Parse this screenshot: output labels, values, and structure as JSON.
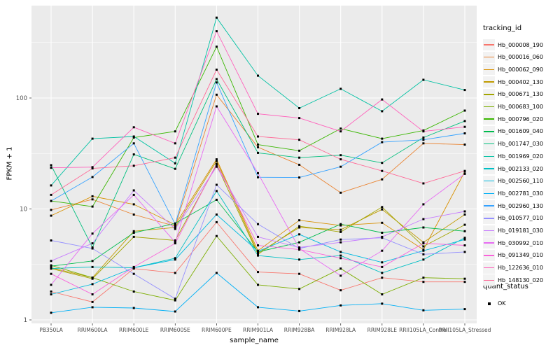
{
  "chart_data": {
    "type": "line",
    "title": "",
    "xlabel": "sample_name",
    "ylabel": "FPKM + 1",
    "y_scale": "log10",
    "y_ticks": [
      1,
      10,
      100
    ],
    "y_minor_ticks": [
      3.1623,
      31.623,
      316.23
    ],
    "ylim": [
      0.93,
      680
    ],
    "grid": "white major and minor gridlines on gray panel",
    "legend_position": "right",
    "legend_title": "tracking_id",
    "legend2_title": "quant_status",
    "quant_status_label": "OK",
    "x_categories": [
      "PB350LA",
      "RRIM600LA",
      "RRIM600LE",
      "RRIM600SE",
      "RRIM600PE",
      "RRIM901LA",
      "RRIM928BA",
      "RRIM928LA",
      "RRIM928LE",
      "RRII105LA_Control",
      "RRII105LA_Stressed"
    ],
    "series": [
      {
        "name": "Hb_000008_190",
        "color": "#F8766D",
        "values": [
          1.8,
          1.45,
          2.9,
          2.65,
          7.6,
          2.7,
          2.6,
          1.85,
          2.4,
          2.2,
          2.2
        ]
      },
      {
        "name": "Hb_000016_060",
        "color": "#EA8331",
        "values": [
          9.8,
          12.2,
          8.9,
          7.0,
          107,
          36,
          25,
          14,
          18.5,
          39,
          38
        ]
      },
      {
        "name": "Hb_000062_090",
        "color": "#D89000",
        "values": [
          8.7,
          13,
          11,
          7.2,
          28,
          4.2,
          7.9,
          7.1,
          7.5,
          4.3,
          21.7
        ]
      },
      {
        "name": "Hb_000402_130",
        "color": "#C09B00",
        "values": [
          2.95,
          2.4,
          6.3,
          6.8,
          27,
          4.0,
          6.8,
          6.5,
          9.9,
          5.0,
          8.9
        ]
      },
      {
        "name": "Hb_000671_130",
        "color": "#A3A500",
        "values": [
          2.9,
          2.35,
          5.6,
          5.2,
          25,
          3.9,
          7.0,
          6.2,
          10.4,
          4.6,
          7.2
        ]
      },
      {
        "name": "Hb_000683_100",
        "color": "#7CAE00",
        "values": [
          3.1,
          2.4,
          1.8,
          1.5,
          5.7,
          2.07,
          1.9,
          2.9,
          1.7,
          2.4,
          2.35
        ]
      },
      {
        "name": "Hb_000796_020",
        "color": "#39B600",
        "values": [
          11.8,
          10.5,
          44,
          50,
          290,
          38,
          33.5,
          53,
          43,
          51,
          77
        ]
      },
      {
        "name": "Hb_001609_040",
        "color": "#00BB4E",
        "values": [
          3.05,
          3.4,
          6.1,
          7.4,
          12.1,
          4.1,
          5.0,
          7.3,
          6.1,
          6.8,
          6.3
        ]
      },
      {
        "name": "Hb_001747_030",
        "color": "#00BF7D",
        "values": [
          24.8,
          4.5,
          31,
          23,
          148,
          32,
          29,
          30.5,
          26,
          44,
          62
        ]
      },
      {
        "name": "Hb_001969_020",
        "color": "#00C1A3",
        "values": [
          16.3,
          43,
          45,
          25.8,
          530,
          159,
          81,
          121,
          76,
          146,
          118
        ]
      },
      {
        "name": "Hb_002133_020",
        "color": "#00BFC4",
        "values": [
          2.9,
          3.0,
          2.95,
          3.6,
          14.5,
          3.8,
          3.5,
          3.8,
          2.65,
          3.5,
          5.5
        ]
      },
      {
        "name": "Hb_002560_110",
        "color": "#00BAE0",
        "values": [
          1.7,
          2.1,
          2.95,
          3.5,
          8.9,
          4.15,
          5.9,
          4.1,
          3.3,
          4.2,
          5.3
        ]
      },
      {
        "name": "Hb_002781_030",
        "color": "#00B0F6",
        "values": [
          1.16,
          1.3,
          1.28,
          1.19,
          2.65,
          1.3,
          1.2,
          1.35,
          1.4,
          1.22,
          1.25
        ]
      },
      {
        "name": "Hb_002960_130",
        "color": "#35A2FF",
        "values": [
          11.8,
          19.4,
          39,
          7.3,
          138,
          19.3,
          19.2,
          24,
          40,
          42,
          48
        ]
      },
      {
        "name": "Hb_010577_010",
        "color": "#9590FF",
        "values": [
          5.2,
          4.4,
          2.6,
          1.55,
          16.5,
          7.3,
          4.4,
          5.3,
          5.5,
          3.9,
          4.1
        ]
      },
      {
        "name": "Hb_019181_030",
        "color": "#C77CFF",
        "values": [
          3.4,
          4.9,
          14.7,
          6.6,
          24,
          5.6,
          4.5,
          5.0,
          5.6,
          8.1,
          9.5
        ]
      },
      {
        "name": "Hb_030992_010",
        "color": "#E76BF3",
        "values": [
          2.07,
          6.0,
          13.4,
          5.0,
          84,
          21,
          4.4,
          2.5,
          4.2,
          11,
          20.7
        ]
      },
      {
        "name": "Hb_091349_010",
        "color": "#FA62DB",
        "values": [
          2.6,
          1.7,
          3.0,
          4.9,
          25.5,
          4.7,
          4.3,
          3.6,
          3.0,
          4.9,
          4.7
        ]
      },
      {
        "name": "Hb_122636_010",
        "color": "#FF62BC",
        "values": [
          23.5,
          23.8,
          54.5,
          39,
          400,
          72,
          66,
          50,
          97,
          50,
          55
        ]
      },
      {
        "name": "Hb_148130_020",
        "color": "#FF6A98",
        "values": [
          13.4,
          23.2,
          24.5,
          29,
          180,
          45,
          42,
          28,
          22,
          17,
          22
        ]
      }
    ],
    "colors": {
      "panel_bg": "#EBEBEB",
      "grid": "#FFFFFF",
      "marker": "#000000",
      "tick_text": "#4D4D4D",
      "tick_mark": "#333333",
      "key_bg": "#F2F2F2"
    }
  }
}
